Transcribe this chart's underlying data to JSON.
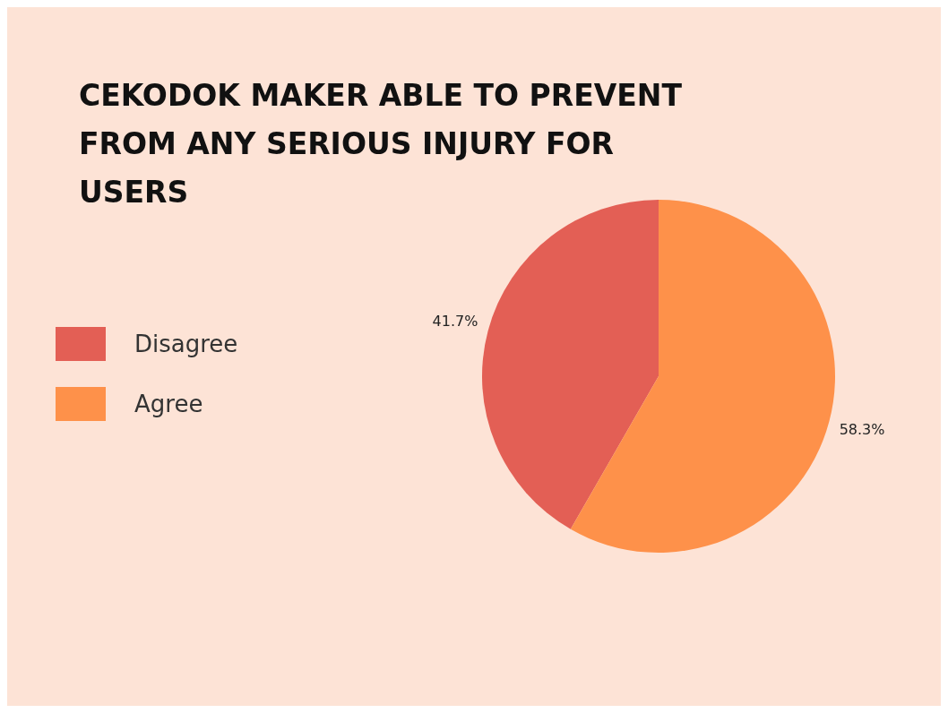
{
  "chart_data": {
    "type": "pie",
    "title": "CEKODOK MAKER ABLE TO PREVENT FROM ANY SERIOUS INJURY FOR USERS",
    "categories": [
      "Disagree",
      "Agree"
    ],
    "values": [
      41.7,
      58.3
    ],
    "colors": [
      "#e35f55",
      "#fe914a"
    ],
    "value_labels": [
      "41.7%",
      "58.3%"
    ],
    "legend": "left"
  }
}
